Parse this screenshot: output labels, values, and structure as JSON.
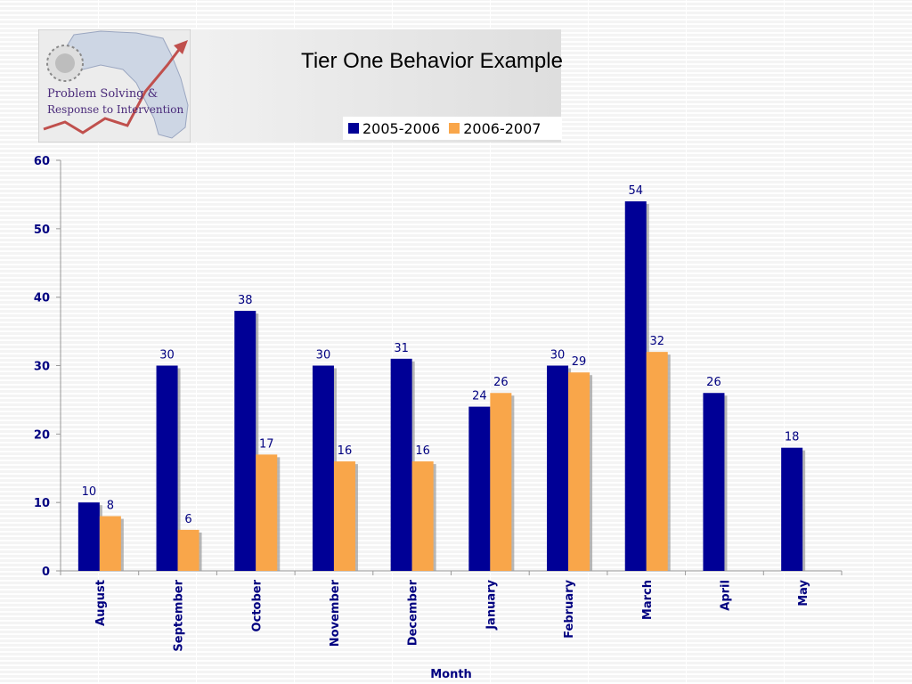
{
  "logo": {
    "line1": "Problem Solving &",
    "line2": "Response to Intervention"
  },
  "colors": {
    "series_2005": "#000096",
    "series_2006": "#f9a64a",
    "axis_text": "#000080"
  },
  "chart_data": {
    "type": "bar",
    "title": "Tier One Behavior Example",
    "xlabel": "Month",
    "ylabel": "",
    "ylim": [
      0,
      60
    ],
    "yticks": [
      0,
      10,
      20,
      30,
      40,
      50,
      60
    ],
    "categories": [
      "August",
      "September",
      "October",
      "November",
      "December",
      "January",
      "February",
      "March",
      "April",
      "May"
    ],
    "series": [
      {
        "name": "2005-2006",
        "values": [
          10,
          30,
          38,
          30,
          31,
          24,
          30,
          54,
          26,
          18
        ]
      },
      {
        "name": "2006-2007",
        "values": [
          8,
          6,
          17,
          16,
          16,
          26,
          29,
          32,
          null,
          null
        ]
      }
    ],
    "legend": "top-right",
    "grid": false
  }
}
